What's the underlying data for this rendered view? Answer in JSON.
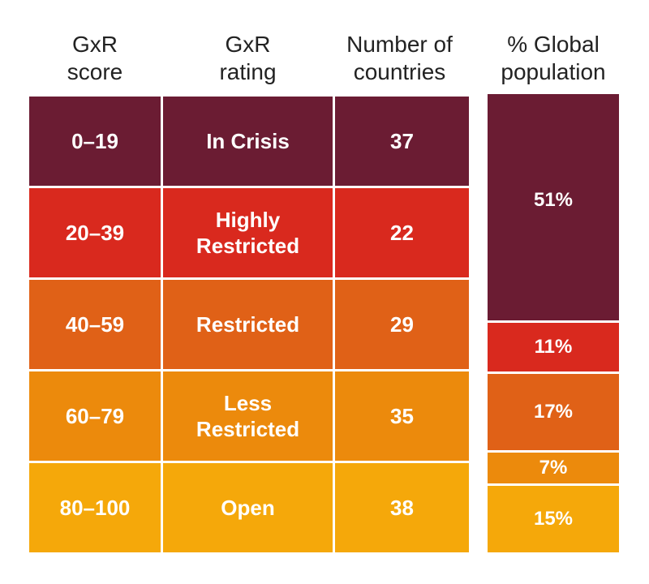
{
  "headers": {
    "score": [
      "GxR",
      "score"
    ],
    "rating": [
      "GxR",
      "rating"
    ],
    "countries": [
      "Number of",
      "countries"
    ],
    "population": [
      "% Global",
      "population"
    ]
  },
  "rows": [
    {
      "score": "0–19",
      "rating": [
        "In Crisis"
      ],
      "countries": "37",
      "color": "#6b1c33"
    },
    {
      "score": "20–39",
      "rating": [
        "Highly",
        "Restricted"
      ],
      "countries": "22",
      "color": "#d9291e"
    },
    {
      "score": "40–59",
      "rating": [
        "Restricted"
      ],
      "countries": "29",
      "color": "#e06117"
    },
    {
      "score": "60–79",
      "rating": [
        "Less",
        "Restricted"
      ],
      "countries": "35",
      "color": "#ec8a0c"
    },
    {
      "score": "80–100",
      "rating": [
        "Open"
      ],
      "countries": "38",
      "color": "#f5a80a"
    }
  ],
  "population": [
    {
      "label": "51%",
      "value": 51,
      "color": "#6b1c33"
    },
    {
      "label": "11%",
      "value": 11,
      "color": "#d9291e"
    },
    {
      "label": "17%",
      "value": 17,
      "color": "#e06117"
    },
    {
      "label": "7%",
      "value": 7,
      "color": "#ec8a0c"
    },
    {
      "label": "15%",
      "value": 15,
      "color": "#f5a80a"
    }
  ],
  "chart_data": {
    "type": "table",
    "columns": [
      "GxR score",
      "GxR rating",
      "Number of countries",
      "% Global population"
    ],
    "categories": [
      "In Crisis",
      "Highly Restricted",
      "Restricted",
      "Less Restricted",
      "Open"
    ],
    "score_ranges": [
      "0–19",
      "20–39",
      "40–59",
      "60–79",
      "80–100"
    ],
    "series": [
      {
        "name": "Number of countries",
        "values": [
          37,
          22,
          29,
          35,
          38
        ]
      },
      {
        "name": "% Global population",
        "values": [
          51,
          11,
          17,
          7,
          15
        ]
      }
    ]
  }
}
